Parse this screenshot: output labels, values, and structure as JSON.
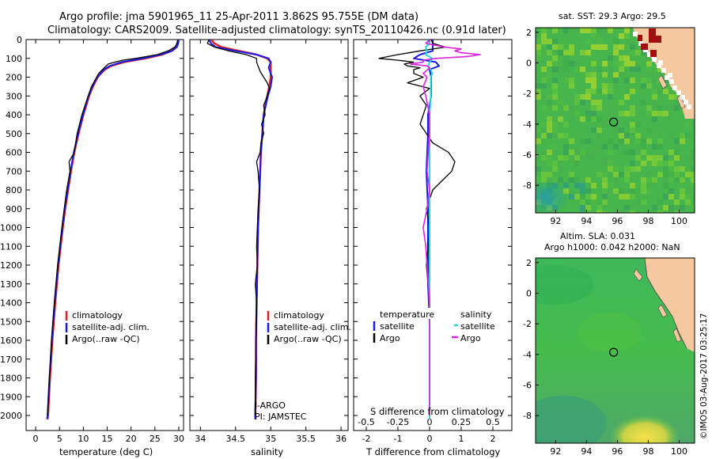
{
  "header": {
    "line1": "Argo profile: jma 5901965_11 25-Apr-2011 3.862S 95.755E (DM data)",
    "line2": "Climatology: CARS2009. Satellite-adjusted climatology: synTS_20110426.nc (0.91d later)"
  },
  "colors": {
    "climatology": "#e02020",
    "satellite": "#1a1ae6",
    "argo": "#000000",
    "salinity_satellite": "#22d8e0",
    "salinity_argo": "#e020e0",
    "land": "#f5c8a0",
    "ocean_base": "#3cb84a",
    "sst_hot": "#a01010"
  },
  "depth_axis": {
    "ticks": [
      "0",
      "100",
      "200",
      "300",
      "400",
      "500",
      "600",
      "700",
      "800",
      "900",
      "1000",
      "1100",
      "1200",
      "1300",
      "1400",
      "1500",
      "1600",
      "1700",
      "1800",
      "1900",
      "2000"
    ]
  },
  "chart_data": [
    {
      "type": "line",
      "name": "temperature",
      "xlabel": "temperature (deg C)",
      "xlim": [
        -2,
        31
      ],
      "ylim": [
        2080,
        0
      ],
      "xticks": [
        "0",
        "5",
        "10",
        "15",
        "20",
        "25",
        "30"
      ],
      "legend": [
        "climatology",
        "satellite-adj. clim.",
        "Argo(..raw -QC)"
      ],
      "series": [
        {
          "name": "climatology",
          "depth": [
            0,
            20,
            40,
            60,
            80,
            100,
            120,
            140,
            160,
            180,
            200,
            250,
            300,
            400,
            500,
            600,
            700,
            800,
            900,
            1000,
            1200,
            1400,
            1600,
            1800,
            2000,
            2020
          ],
          "values": [
            29.9,
            29.8,
            29.5,
            28.5,
            26.5,
            23.0,
            18.5,
            15.8,
            14.5,
            13.7,
            13.0,
            12.0,
            11.2,
            10.0,
            9.0,
            8.1,
            7.4,
            6.8,
            6.2,
            5.7,
            4.8,
            4.1,
            3.5,
            3.0,
            2.6,
            2.5
          ]
        },
        {
          "name": "satellite-adj. clim.",
          "depth": [
            0,
            20,
            40,
            60,
            80,
            100,
            120,
            140,
            160,
            180,
            200,
            250,
            300,
            400,
            500,
            600,
            700,
            800,
            900,
            1000,
            1200,
            1400,
            1600,
            1800,
            2000,
            2020
          ],
          "values": [
            30.0,
            29.9,
            29.6,
            28.6,
            26.2,
            22.5,
            18.0,
            15.5,
            14.3,
            13.6,
            12.9,
            11.9,
            11.1,
            9.9,
            8.9,
            8.0,
            7.3,
            6.7,
            6.1,
            5.6,
            4.7,
            4.0,
            3.4,
            2.9,
            2.5,
            2.4
          ]
        },
        {
          "name": "Argo(..raw -QC)",
          "depth": [
            0,
            20,
            40,
            60,
            80,
            100,
            110,
            120,
            130,
            140,
            160,
            180,
            200,
            250,
            300,
            400,
            500,
            600,
            650,
            700,
            800,
            900,
            1000,
            1200,
            1400,
            1600,
            1800,
            2000
          ],
          "values": [
            29.8,
            29.6,
            29.2,
            27.8,
            25.5,
            21.0,
            18.2,
            16.6,
            15.2,
            14.8,
            14.0,
            13.2,
            12.8,
            11.7,
            11.0,
            9.7,
            8.7,
            8.1,
            7.0,
            7.2,
            6.5,
            6.0,
            5.5,
            4.6,
            3.9,
            3.3,
            2.9,
            2.5
          ]
        }
      ]
    },
    {
      "type": "line",
      "name": "salinity",
      "xlabel": "salinity",
      "xlim": [
        33.85,
        36.1
      ],
      "ylim": [
        2080,
        0
      ],
      "xticks": [
        "34",
        "34.5",
        "35",
        "35.5",
        "36"
      ],
      "legend": [
        "climatology",
        "satellite-adj. clim.",
        "Argo(..raw -QC)"
      ],
      "annotations": [
        "J-ARGO",
        "PI: JAMSTEC"
      ],
      "series": [
        {
          "name": "climatology",
          "depth": [
            0,
            20,
            40,
            60,
            80,
            100,
            120,
            150,
            200,
            250,
            300,
            400,
            500,
            600,
            800,
            1000,
            1200,
            1400,
            1600,
            1800,
            2000,
            2020
          ],
          "values": [
            34.15,
            34.2,
            34.3,
            34.55,
            34.8,
            34.95,
            35.0,
            35.0,
            35.0,
            34.98,
            34.95,
            34.9,
            34.88,
            34.86,
            34.84,
            34.82,
            34.81,
            34.8,
            34.79,
            34.79,
            34.78,
            34.78
          ]
        },
        {
          "name": "satellite-adj. clim.",
          "depth": [
            0,
            20,
            40,
            60,
            80,
            100,
            120,
            150,
            200,
            250,
            300,
            400,
            500,
            600,
            800,
            1000,
            1200,
            1400,
            1600,
            1800,
            2000,
            2020
          ],
          "values": [
            34.12,
            34.15,
            34.22,
            34.5,
            34.8,
            34.97,
            35.0,
            34.97,
            35.02,
            35.0,
            34.96,
            34.9,
            34.88,
            34.86,
            34.84,
            34.82,
            34.81,
            34.8,
            34.79,
            34.79,
            34.78,
            34.78
          ]
        },
        {
          "name": "Argo(..raw -QC)",
          "depth": [
            0,
            20,
            40,
            60,
            80,
            100,
            120,
            140,
            170,
            200,
            230,
            260,
            300,
            350,
            400,
            450,
            500,
            550,
            600,
            650,
            700,
            800,
            900,
            1000,
            1100,
            1200,
            1300,
            1400,
            1600,
            1800,
            2000
          ],
          "values": [
            34.12,
            34.1,
            34.2,
            34.4,
            34.65,
            34.8,
            34.8,
            34.82,
            34.85,
            34.9,
            34.95,
            34.98,
            34.95,
            34.9,
            34.92,
            34.87,
            34.9,
            34.86,
            34.85,
            34.8,
            34.82,
            34.84,
            34.82,
            34.81,
            34.8,
            34.81,
            34.78,
            34.8,
            34.79,
            34.78,
            34.78
          ]
        }
      ]
    },
    {
      "type": "line",
      "name": "differences",
      "xlabel": "T difference from climatology",
      "xlabel_top": "S difference from climatology",
      "xlim": [
        -2.4,
        2.6
      ],
      "ylim": [
        2080,
        0
      ],
      "xticks": [
        "-2",
        "-1",
        "0",
        "1",
        "2"
      ],
      "xticks_top": [
        "-0.5",
        "-0.25",
        "0",
        "0.25",
        "0.5"
      ],
      "legend_titles": [
        "temperature",
        "salinity"
      ],
      "legend": [
        "satellite",
        "Argo",
        "satellite",
        "Argo"
      ],
      "series": [
        {
          "name": "T satellite",
          "depth": [
            0,
            20,
            40,
            60,
            80,
            100,
            120,
            140,
            160,
            200,
            300,
            400,
            500,
            700,
            900,
            1100,
            1300,
            1500,
            1700,
            1900,
            2020
          ],
          "values": [
            0.1,
            0.1,
            0.1,
            0.1,
            -0.3,
            -0.5,
            0.2,
            0.3,
            0.0,
            0.05,
            0.05,
            -0.05,
            -0.05,
            -0.1,
            -0.05,
            -0.05,
            -0.05,
            0.0,
            0.0,
            0.0,
            0.0
          ]
        },
        {
          "name": "T Argo",
          "depth": [
            0,
            20,
            40,
            60,
            80,
            100,
            110,
            120,
            130,
            140,
            150,
            160,
            180,
            200,
            230,
            260,
            300,
            350,
            400,
            450,
            500,
            550,
            600,
            650,
            700,
            750,
            800,
            900,
            1000,
            1100,
            1200,
            1300,
            1400,
            1500,
            1700,
            1900,
            2000
          ],
          "values": [
            0.05,
            0.1,
            0.5,
            -0.3,
            -1.0,
            -1.6,
            -1.0,
            -0.5,
            -0.8,
            -0.7,
            -0.3,
            -0.5,
            -0.5,
            -0.2,
            -0.7,
            0.0,
            -0.3,
            -0.1,
            -0.2,
            -0.3,
            -0.1,
            0.1,
            0.6,
            0.8,
            0.7,
            0.4,
            0.1,
            -0.1,
            0.0,
            -0.05,
            -0.1,
            -0.05,
            0.0,
            0.0,
            0.0,
            0.0,
            0.0
          ]
        },
        {
          "name": "S satellite",
          "depth": [
            0,
            20,
            40,
            60,
            80,
            100,
            120,
            140,
            160,
            180,
            200,
            300,
            400,
            600,
            800,
            1000,
            1200,
            1400,
            1600,
            1800,
            2000,
            2020
          ],
          "values": [
            -0.02,
            0.0,
            -0.03,
            -0.02,
            -0.03,
            0.02,
            0.0,
            -0.01,
            0.01,
            0.02,
            0.01,
            0.01,
            0.0,
            0.0,
            0.0,
            0.0,
            0.0,
            0.0,
            0.0,
            0.0,
            0.0,
            0.0
          ]
        },
        {
          "name": "S Argo",
          "depth": [
            0,
            20,
            40,
            50,
            60,
            70,
            80,
            90,
            100,
            110,
            120,
            130,
            140,
            150,
            180,
            200,
            250,
            300,
            400,
            500,
            600,
            700,
            800,
            900,
            1000,
            1100,
            1200,
            1300,
            1400,
            1500,
            1600,
            1800,
            2000
          ],
          "values": [
            0.0,
            -0.03,
            0.12,
            0.25,
            0.2,
            0.25,
            0.4,
            0.3,
            0.05,
            -0.05,
            -0.05,
            -0.15,
            -0.02,
            0.0,
            -0.05,
            -0.02,
            -0.05,
            -0.03,
            0.0,
            0.0,
            -0.01,
            -0.02,
            0.0,
            -0.02,
            -0.05,
            -0.03,
            -0.02,
            -0.01,
            0.0,
            0.0,
            0.0,
            0.0,
            0.0
          ]
        }
      ]
    },
    {
      "type": "heatmap",
      "name": "sst_map",
      "title": "sat. SST: 29.3 Argo: 29.5",
      "xlim": [
        90.7,
        101
      ],
      "ylim": [
        -9.8,
        2.3
      ],
      "xticks": [
        "92",
        "94",
        "96",
        "98",
        "100"
      ],
      "yticks": [
        "2",
        "0",
        "-2",
        "-4",
        "-6",
        "-8"
      ],
      "argo_position": [
        95.755,
        -3.862
      ]
    },
    {
      "type": "heatmap",
      "name": "sla_map",
      "title_line1": "Altim. SLA: 0.031",
      "title_line2": "Argo h1000: 0.042 h2000: NaN",
      "xlim": [
        90.7,
        101
      ],
      "ylim": [
        -9.8,
        2.3
      ],
      "xticks": [
        "92",
        "94",
        "96",
        "98",
        "100"
      ],
      "yticks": [
        "2",
        "0",
        "-2",
        "-4",
        "-6",
        "-8"
      ],
      "argo_position": [
        95.755,
        -3.862
      ]
    }
  ],
  "footer": {
    "credit": "©IMOS 03-Aug-2017 03:25:17"
  }
}
